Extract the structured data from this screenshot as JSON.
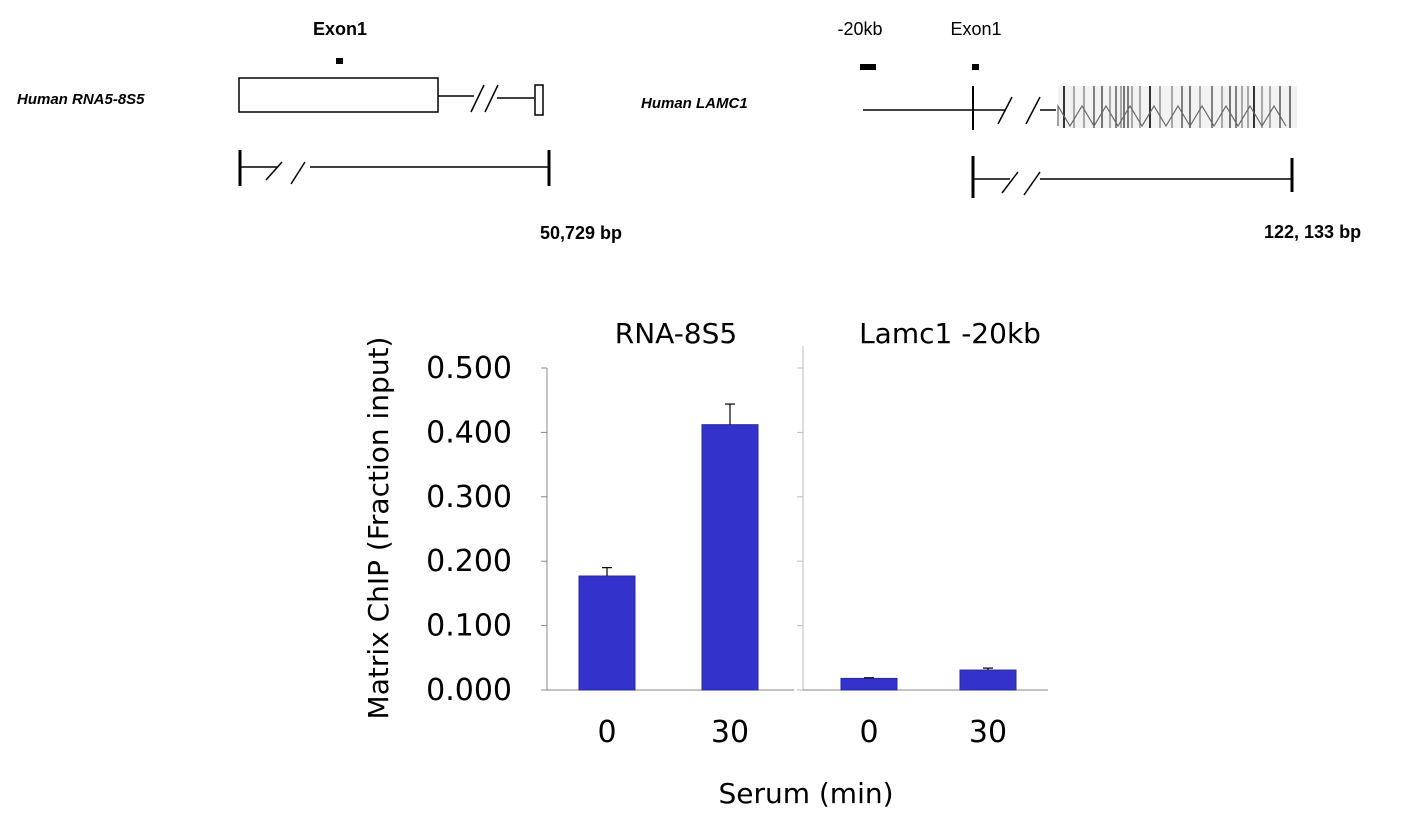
{
  "gene_maps": {
    "left": {
      "gene_label": "Human  RNA5-8S5",
      "exon_label": "Exon1",
      "length_label": "50,729 bp"
    },
    "right": {
      "gene_label": "Human LAMC1",
      "upstream_label": "-20kb",
      "exon_label": "Exon1",
      "length_label": "122, 133 bp"
    }
  },
  "chart_data": {
    "type": "bar",
    "ylabel": "Matrix ChIP (Fraction input)",
    "xlabel": "Serum (min)",
    "ylim": [
      0,
      0.5
    ],
    "yticks": [
      "0.000",
      "0.100",
      "0.200",
      "0.300",
      "0.400",
      "0.500"
    ],
    "grid": false,
    "bar_color": "#3333cc",
    "panels": [
      {
        "title": "RNA-8S5",
        "categories": [
          "0",
          "30"
        ],
        "values": [
          0.177,
          0.412
        ],
        "errors": [
          0.013,
          0.032
        ]
      },
      {
        "title": "Lamc1 -20kb",
        "categories": [
          "0",
          "30"
        ],
        "values": [
          0.018,
          0.031
        ],
        "errors": [
          0.001,
          0.003
        ]
      }
    ]
  }
}
